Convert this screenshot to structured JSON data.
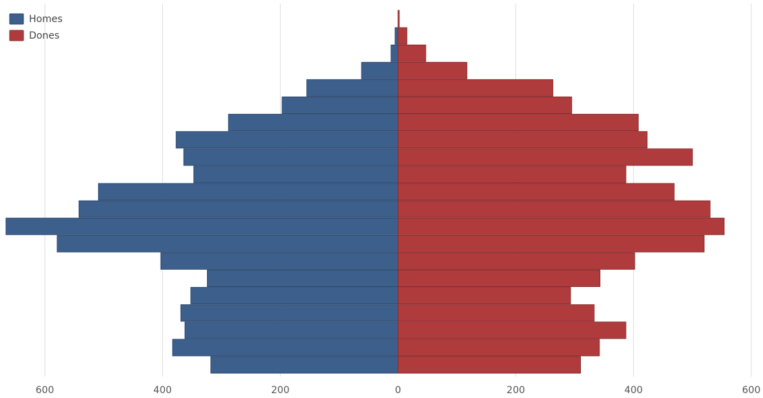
{
  "chart_data": {
    "type": "bar",
    "orientation": "horizontal",
    "layout": "population-pyramid",
    "legend": {
      "position": "top-left",
      "entries": [
        {
          "label": "Homes",
          "color": "#3d5f8c"
        },
        {
          "label": "Dones",
          "color": "#b03b3d"
        }
      ]
    },
    "series": [
      {
        "name": "Homes",
        "color": "#3d5f8c",
        "side": "left",
        "values": [
          0,
          5,
          12,
          62,
          155,
          197,
          288,
          377,
          364,
          347,
          509,
          542,
          666,
          579,
          403,
          324,
          352,
          369,
          362,
          383,
          318
        ]
      },
      {
        "name": "Dones",
        "color": "#b03b3d",
        "side": "right",
        "values": [
          2,
          15,
          47,
          117,
          263,
          295,
          408,
          423,
          500,
          387,
          469,
          530,
          554,
          520,
          402,
          343,
          293,
          333,
          387,
          342,
          310
        ]
      }
    ],
    "x_ticks": [
      {
        "label": "600",
        "value": -600
      },
      {
        "label": "400",
        "value": -400
      },
      {
        "label": "200",
        "value": -200
      },
      {
        "label": "0",
        "value": 0
      },
      {
        "label": "200",
        "value": 200
      },
      {
        "label": "400",
        "value": 400
      },
      {
        "label": "600",
        "value": 600
      }
    ],
    "xlim": [
      -600,
      600
    ],
    "grid": true,
    "xlabel": "",
    "ylabel": "",
    "title": ""
  }
}
